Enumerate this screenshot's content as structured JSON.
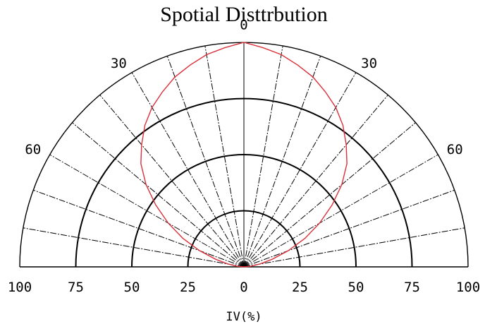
{
  "chart_data": {
    "type": "polar-half",
    "title": "Spotial Disttrbution",
    "xlabel": "IV(%)",
    "radial_range": [
      0,
      100
    ],
    "radial_ticks": [
      {
        "value": 100,
        "label": "100"
      },
      {
        "value": 75,
        "label": "75"
      },
      {
        "value": 50,
        "label": "50"
      },
      {
        "value": 25,
        "label": "25"
      },
      {
        "value": 0,
        "label": "0"
      },
      {
        "value": 25,
        "label": "25"
      },
      {
        "value": 50,
        "label": "50"
      },
      {
        "value": 75,
        "label": "75"
      },
      {
        "value": 100,
        "label": "100"
      }
    ],
    "angle_labels": [
      {
        "angle": 0,
        "label": "0"
      },
      {
        "angle": -30,
        "label": "30"
      },
      {
        "angle": 30,
        "label": "30"
      },
      {
        "angle": -60,
        "label": "60"
      },
      {
        "angle": 60,
        "label": "60"
      }
    ],
    "spoke_step_deg": 10,
    "grid": true,
    "series": [
      {
        "color": "#d9303a",
        "points": [
          {
            "angle": 0,
            "value": 100
          },
          {
            "angle": 5,
            "value": 98
          },
          {
            "angle": 10,
            "value": 96
          },
          {
            "angle": 15,
            "value": 93
          },
          {
            "angle": 20,
            "value": 90
          },
          {
            "angle": 25,
            "value": 86
          },
          {
            "angle": 30,
            "value": 82
          },
          {
            "angle": 35,
            "value": 77
          },
          {
            "angle": 40,
            "value": 71
          },
          {
            "angle": 45,
            "value": 65
          },
          {
            "angle": 50,
            "value": 57
          },
          {
            "angle": 55,
            "value": 48
          },
          {
            "angle": 60,
            "value": 39
          },
          {
            "angle": 65,
            "value": 30
          },
          {
            "angle": 70,
            "value": 21
          },
          {
            "angle": 75,
            "value": 13
          },
          {
            "angle": 80,
            "value": 7
          },
          {
            "angle": 85,
            "value": 3
          },
          {
            "angle": 90,
            "value": 0
          }
        ]
      }
    ]
  }
}
